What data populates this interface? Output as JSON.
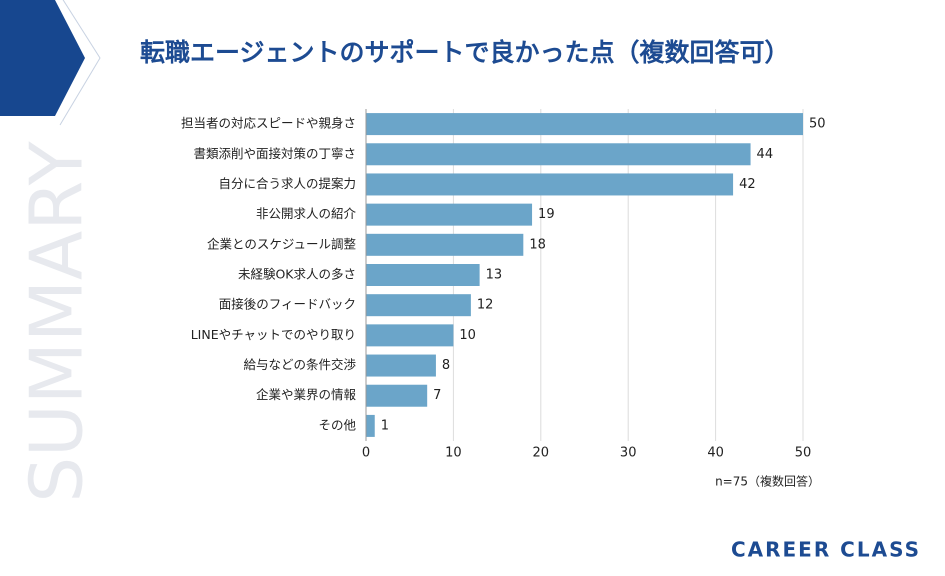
{
  "chart_data": {
    "type": "barh",
    "title": "転職エージェントのサポートで良かった点（複数回答可）",
    "note": "n=75（複数回答）",
    "categories": [
      "担当者の対応スピードや親身さ",
      "書類添削や面接対策の丁寧さ",
      "自分に合う求人の提案力",
      "非公開求人の紹介",
      "企業とのスケジュール調整",
      "未経験OK求人の多さ",
      "面接後のフィードバック",
      "LINEやチャットでのやり取り",
      "給与などの条件交渉",
      "企業や業界の情報",
      "その他"
    ],
    "values": [
      50,
      44,
      42,
      19,
      18,
      13,
      12,
      10,
      8,
      7,
      1
    ],
    "color": "#6ba5c9",
    "xlim": [
      0,
      50
    ],
    "xticks": [
      0,
      10,
      20,
      30,
      40,
      50
    ],
    "grid": true
  },
  "branding": {
    "logo": "CAREER CLASS",
    "side_label": "SUMMARY"
  }
}
